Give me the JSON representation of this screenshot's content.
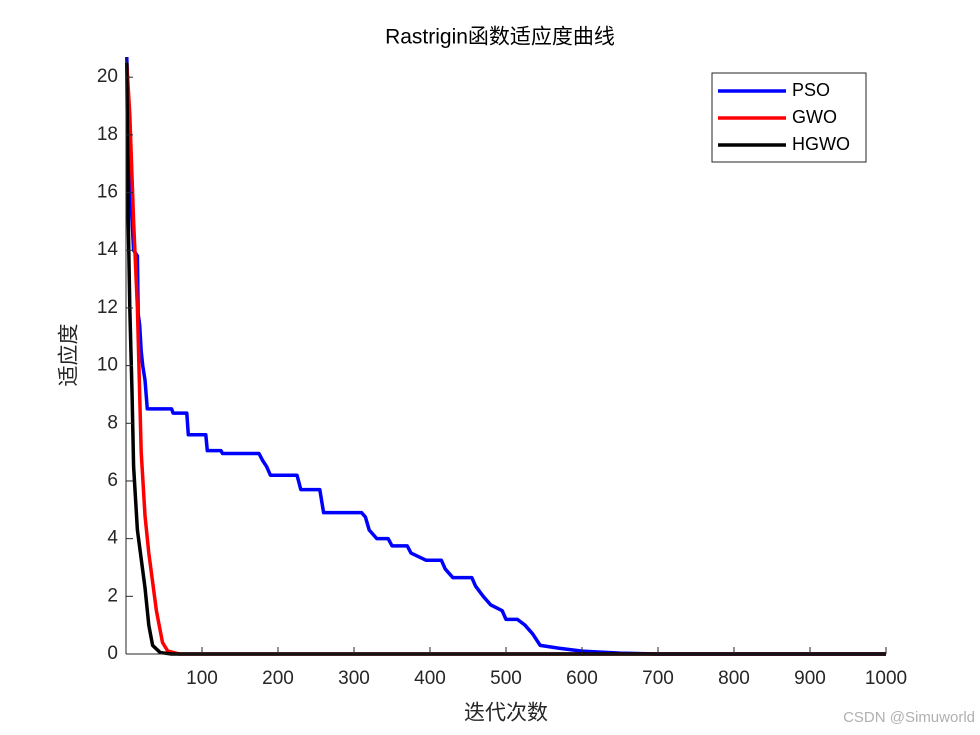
{
  "chart_data": {
    "type": "line",
    "title": "Rastrigin函数适应度曲线",
    "x_label": "迭代次数",
    "y_label": "适应度",
    "xlim": [
      0,
      1000
    ],
    "ylim": [
      0,
      20.7
    ],
    "xticks": [
      100,
      200,
      300,
      400,
      500,
      600,
      700,
      800,
      900,
      1000
    ],
    "yticks": [
      0,
      2,
      4,
      6,
      8,
      10,
      12,
      14,
      16,
      18,
      20
    ],
    "legend": "northeast",
    "series": [
      {
        "name": "PSO",
        "color": "#0000ff",
        "x": [
          1,
          6,
          10,
          15,
          16,
          18,
          20,
          22,
          25,
          28,
          60,
          62,
          80,
          82,
          105,
          107,
          125,
          127,
          175,
          180,
          185,
          190,
          225,
          230,
          255,
          260,
          310,
          315,
          320,
          330,
          345,
          350,
          370,
          375,
          395,
          415,
          420,
          430,
          455,
          460,
          470,
          480,
          495,
          500,
          515,
          525,
          535,
          545,
          570,
          600,
          650,
          700,
          1000
        ],
        "values": [
          20.7,
          16,
          14,
          13.8,
          11.8,
          11.4,
          10.5,
          10,
          9.5,
          8.5,
          8.5,
          8.35,
          8.35,
          7.6,
          7.6,
          7.05,
          7.05,
          6.95,
          6.95,
          6.7,
          6.5,
          6.2,
          6.2,
          5.7,
          5.7,
          4.9,
          4.9,
          4.75,
          4.3,
          4.0,
          4.0,
          3.75,
          3.75,
          3.5,
          3.25,
          3.25,
          2.95,
          2.65,
          2.65,
          2.35,
          2.0,
          1.7,
          1.5,
          1.2,
          1.2,
          1.0,
          0.7,
          0.3,
          0.2,
          0.1,
          0.03,
          0,
          0
        ]
      },
      {
        "name": "GWO",
        "color": "#ff0000",
        "x": [
          1,
          5,
          10,
          15,
          20,
          25,
          30,
          35,
          40,
          48,
          55,
          70,
          1000
        ],
        "values": [
          20.5,
          18.7,
          15,
          12,
          7,
          4.8,
          3.5,
          2.5,
          1.5,
          0.4,
          0.1,
          0,
          0
        ]
      },
      {
        "name": "HGWO",
        "color": "#000000",
        "x": [
          1,
          3,
          5,
          8,
          10,
          15,
          20,
          25,
          30,
          35,
          45,
          60,
          1000
        ],
        "values": [
          20.5,
          15,
          12,
          9,
          6.5,
          4.3,
          3.3,
          2.3,
          1,
          0.3,
          0.05,
          0,
          0
        ]
      }
    ]
  },
  "watermark": "CSDN @Simuworld"
}
